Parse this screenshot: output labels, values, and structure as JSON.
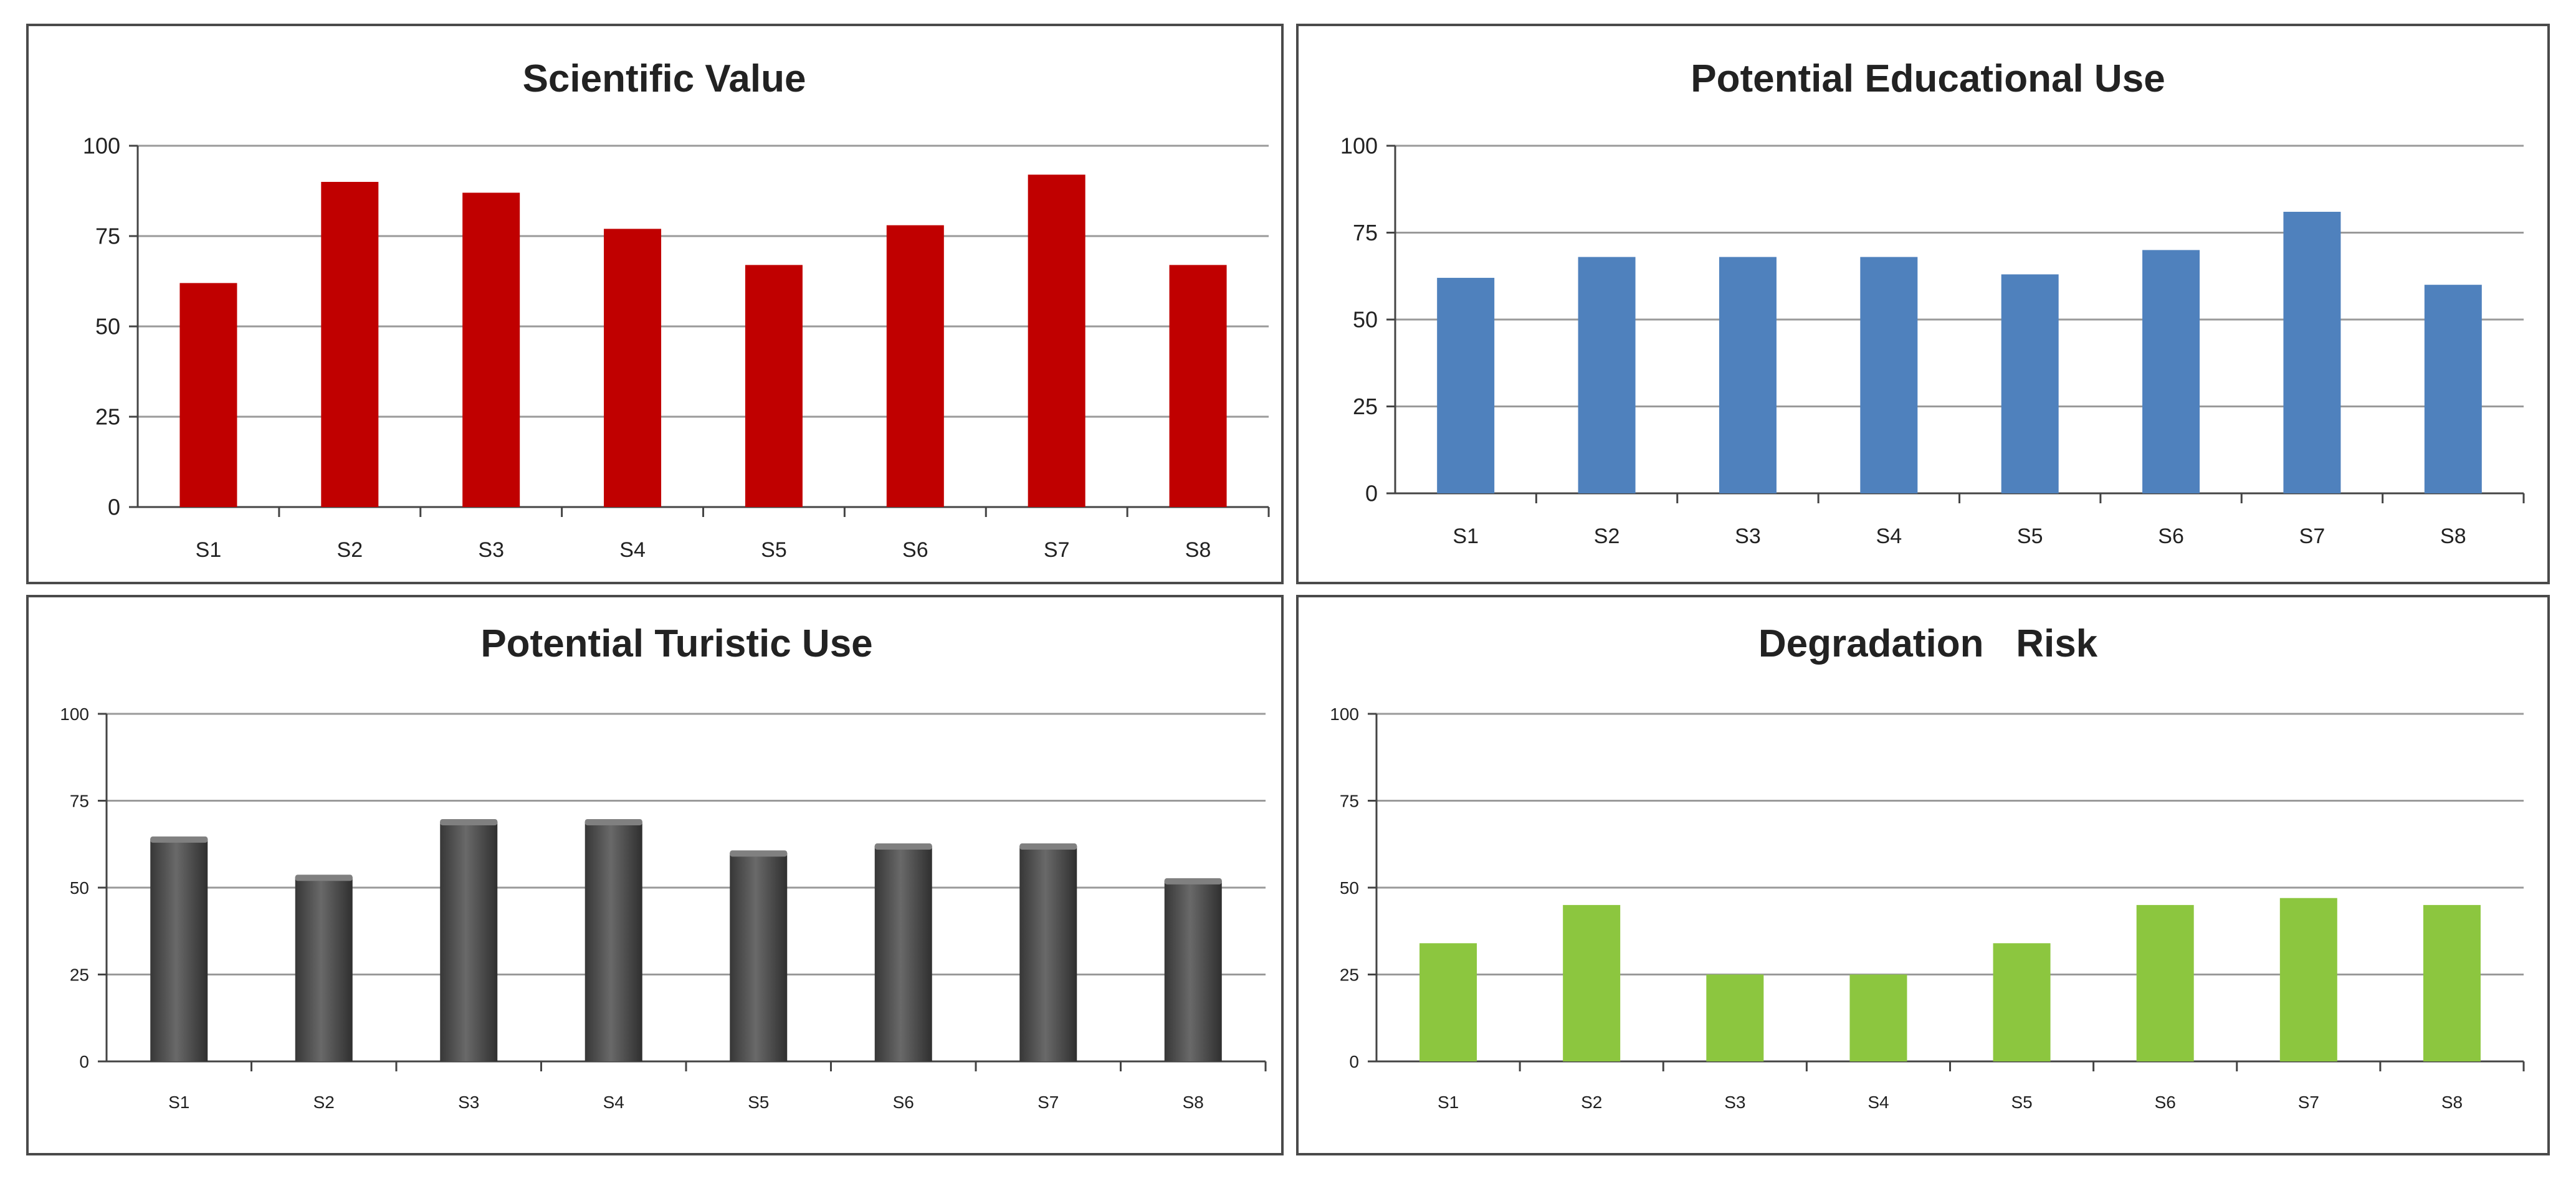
{
  "chart_data": [
    {
      "type": "bar",
      "title": "Scientific Value",
      "categories": [
        "S1",
        "S2",
        "S3",
        "S4",
        "S5",
        "S6",
        "S7",
        "S8"
      ],
      "values": [
        62,
        90,
        87,
        77,
        67,
        78,
        92,
        67
      ],
      "yticks": [
        "0",
        "25",
        "50",
        "75",
        "100"
      ],
      "ylim": [
        0,
        100
      ],
      "grid": true,
      "color": "#c00000"
    },
    {
      "type": "bar",
      "title": "Potential Educational Use",
      "categories": [
        "S1",
        "S2",
        "S3",
        "S4",
        "S5",
        "S6",
        "S7",
        "S8"
      ],
      "values": [
        62,
        68,
        68,
        68,
        63,
        70,
        81,
        60
      ],
      "yticks": [
        "0",
        "25",
        "50",
        "75",
        "100"
      ],
      "ylim": [
        0,
        100
      ],
      "grid": true,
      "color": "#4f81bd"
    },
    {
      "type": "bar",
      "title": "Potential Turistic Use",
      "categories": [
        "S1",
        "S2",
        "S3",
        "S4",
        "S5",
        "S6",
        "S7",
        "S8"
      ],
      "values": [
        64,
        53,
        69,
        69,
        60,
        62,
        62,
        52
      ],
      "yticks": [
        "0",
        "25",
        "50",
        "75",
        "100"
      ],
      "ylim": [
        0,
        100
      ],
      "grid": true,
      "color": "#555555"
    },
    {
      "type": "bar",
      "title": "Degradation   Risk",
      "categories": [
        "S1",
        "S2",
        "S3",
        "S4",
        "S5",
        "S6",
        "S7",
        "S8"
      ],
      "values": [
        34,
        45,
        25,
        25,
        34,
        45,
        47,
        45
      ],
      "yticks": [
        "0",
        "25",
        "50",
        "75",
        "100"
      ],
      "ylim": [
        0,
        100
      ],
      "grid": true,
      "color": "#8cc63f"
    }
  ]
}
